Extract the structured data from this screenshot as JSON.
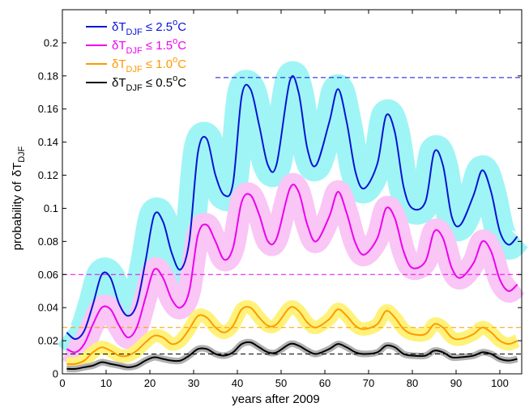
{
  "chart_data": {
    "type": "line",
    "xlabel": "years after 2009",
    "ylabel": {
      "main": "probability of",
      "delta": "δT",
      "sub": "DJF"
    },
    "xlim": [
      0,
      105
    ],
    "ylim": [
      0,
      0.22
    ],
    "xticks": [
      0,
      10,
      20,
      30,
      40,
      50,
      60,
      70,
      80,
      90,
      100
    ],
    "yticks": [
      0,
      0.02,
      0.04,
      0.06,
      0.08,
      0.1,
      0.12,
      0.14,
      0.16,
      0.18,
      0.2
    ],
    "ytick_labels": [
      "0",
      "0.02",
      "0.04",
      "0.06",
      "0.08",
      "0.1",
      "0.12",
      "0.14",
      "0.16",
      "0.18",
      "0.2"
    ],
    "grid": false,
    "legend_placement": "top-left",
    "series": [
      {
        "name": "δT_DJF ≤ 2.5°C",
        "legend": {
          "pre": "δT",
          "sub": "DJF",
          "post": " ≤ 2.5",
          "sup": "o",
          "unit": "C"
        },
        "color": "#0a12d6",
        "band_color": "#9ff5f5",
        "band_halfwidth": 0.009,
        "threshold": 0.179,
        "threshold_from": 35,
        "x": [
          1,
          3,
          5,
          7,
          9,
          11,
          13,
          15,
          17,
          19,
          21,
          23,
          25,
          27,
          29,
          31,
          33,
          35,
          37,
          39,
          41,
          43,
          45,
          47,
          49,
          52,
          54,
          56,
          58,
          61,
          63,
          65,
          67,
          69,
          72,
          74,
          76,
          78,
          80,
          83,
          85,
          87,
          89,
          91,
          94,
          96,
          98,
          100,
          102,
          104
        ],
        "y": [
          0.025,
          0.021,
          0.026,
          0.042,
          0.06,
          0.058,
          0.042,
          0.035,
          0.042,
          0.068,
          0.096,
          0.092,
          0.073,
          0.063,
          0.08,
          0.134,
          0.142,
          0.12,
          0.108,
          0.115,
          0.168,
          0.172,
          0.15,
          0.126,
          0.127,
          0.177,
          0.17,
          0.136,
          0.126,
          0.152,
          0.172,
          0.152,
          0.122,
          0.112,
          0.127,
          0.156,
          0.146,
          0.113,
          0.1,
          0.104,
          0.134,
          0.126,
          0.095,
          0.09,
          0.108,
          0.123,
          0.11,
          0.086,
          0.078,
          0.083
        ]
      },
      {
        "name": "δT_DJF ≤ 1.5°C",
        "legend": {
          "pre": "δT",
          "sub": "DJF",
          "post": " ≤ 1.5",
          "sup": "o",
          "unit": "C"
        },
        "color": "#ee00ee",
        "band_color": "#f9c6f5",
        "band_halfwidth": 0.007,
        "threshold": 0.06,
        "threshold_from": 0,
        "x": [
          1,
          3,
          5,
          7,
          9,
          11,
          13,
          15,
          17,
          19,
          21,
          23,
          25,
          27,
          29,
          31,
          33,
          35,
          37,
          39,
          41,
          43,
          45,
          47,
          49,
          52,
          54,
          56,
          58,
          61,
          63,
          65,
          67,
          69,
          72,
          74,
          76,
          78,
          80,
          83,
          85,
          87,
          89,
          91,
          94,
          96,
          98,
          100,
          102,
          104
        ],
        "y": [
          0.015,
          0.013,
          0.018,
          0.03,
          0.04,
          0.039,
          0.029,
          0.022,
          0.028,
          0.046,
          0.063,
          0.058,
          0.045,
          0.04,
          0.05,
          0.084,
          0.09,
          0.08,
          0.069,
          0.076,
          0.104,
          0.108,
          0.096,
          0.08,
          0.082,
          0.112,
          0.11,
          0.09,
          0.08,
          0.095,
          0.11,
          0.097,
          0.079,
          0.072,
          0.082,
          0.1,
          0.094,
          0.074,
          0.064,
          0.068,
          0.086,
          0.082,
          0.064,
          0.058,
          0.067,
          0.08,
          0.074,
          0.057,
          0.05,
          0.054
        ]
      },
      {
        "name": "δT_DJF ≤ 1.0°C",
        "legend": {
          "pre": "δT",
          "sub": "DJF",
          "post": " ≤ 1.0",
          "sup": "o",
          "unit": "C"
        },
        "color": "#ff9900",
        "band_color": "#fff27a",
        "band_halfwidth": 0.004,
        "threshold": 0.028,
        "threshold_from": 0,
        "x": [
          1,
          3,
          5,
          7,
          9,
          11,
          13,
          15,
          17,
          19,
          21,
          23,
          25,
          27,
          29,
          31,
          33,
          35,
          37,
          39,
          41,
          43,
          45,
          47,
          49,
          52,
          54,
          56,
          58,
          61,
          63,
          65,
          67,
          69,
          72,
          74,
          76,
          78,
          80,
          83,
          85,
          87,
          89,
          91,
          94,
          96,
          98,
          100,
          102,
          104
        ],
        "y": [
          0.006,
          0.006,
          0.008,
          0.013,
          0.016,
          0.014,
          0.011,
          0.011,
          0.014,
          0.019,
          0.023,
          0.022,
          0.018,
          0.02,
          0.027,
          0.035,
          0.034,
          0.028,
          0.025,
          0.029,
          0.039,
          0.04,
          0.034,
          0.029,
          0.03,
          0.04,
          0.038,
          0.031,
          0.028,
          0.033,
          0.039,
          0.035,
          0.029,
          0.027,
          0.03,
          0.038,
          0.034,
          0.027,
          0.024,
          0.024,
          0.03,
          0.028,
          0.022,
          0.021,
          0.024,
          0.028,
          0.025,
          0.02,
          0.018,
          0.02
        ]
      },
      {
        "name": "δT_DJF ≤ 0.5°C",
        "legend": {
          "pre": "δT",
          "sub": "DJF",
          "post": " ≤ 0.5",
          "sup": "o",
          "unit": "C"
        },
        "color": "#000000",
        "band_color": "#b0b0b0",
        "band_halfwidth": 0.002,
        "threshold": 0.012,
        "threshold_from": 0,
        "x": [
          1,
          3,
          5,
          7,
          9,
          11,
          13,
          15,
          17,
          19,
          21,
          23,
          25,
          27,
          29,
          31,
          33,
          35,
          37,
          39,
          41,
          43,
          45,
          47,
          49,
          52,
          54,
          56,
          58,
          61,
          63,
          65,
          67,
          69,
          72,
          74,
          76,
          78,
          80,
          83,
          85,
          87,
          89,
          91,
          94,
          96,
          98,
          100,
          102,
          104
        ],
        "y": [
          0.003,
          0.003,
          0.004,
          0.005,
          0.007,
          0.006,
          0.005,
          0.004,
          0.005,
          0.008,
          0.01,
          0.009,
          0.008,
          0.008,
          0.011,
          0.015,
          0.015,
          0.012,
          0.011,
          0.013,
          0.018,
          0.019,
          0.016,
          0.013,
          0.013,
          0.018,
          0.017,
          0.014,
          0.012,
          0.015,
          0.018,
          0.016,
          0.013,
          0.012,
          0.013,
          0.017,
          0.016,
          0.012,
          0.011,
          0.011,
          0.014,
          0.013,
          0.01,
          0.01,
          0.011,
          0.013,
          0.012,
          0.009,
          0.008,
          0.009
        ]
      }
    ]
  }
}
